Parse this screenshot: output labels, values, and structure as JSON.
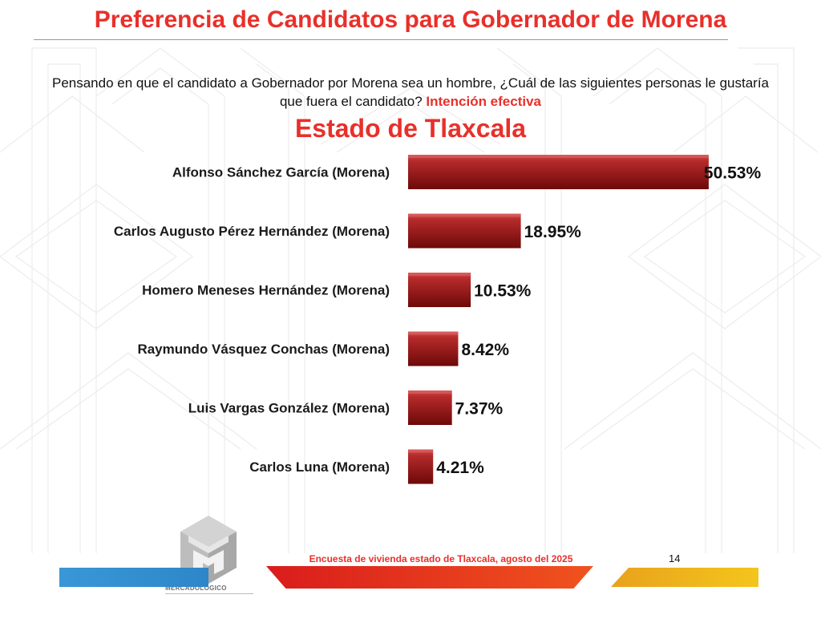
{
  "title": "Preferencia de Candidatos para Gobernador de Morena",
  "question": {
    "text": "Pensando en que el candidato a Gobernador por Morena sea un hombre, ¿Cuál de las siguientes personas le gustaría que fuera el candidato?",
    "highlight": "Intención efectiva"
  },
  "state_title": "Estado de  Tlaxcala",
  "footer": {
    "survey": "Encuesta de vivienda estado de Tlaxcala, agosto del 2025",
    "page_number": "14",
    "logo_text": "MERCADOLÓGICO"
  },
  "colors": {
    "accent_red": "#e8302a",
    "bar_dark": "#7d0d0d",
    "bar_light": "#b52a2a",
    "footer_blue": "#2d86c9",
    "footer_yellow": "#f4c51c"
  },
  "chart_data": {
    "type": "bar",
    "orientation": "horizontal",
    "categories": [
      "Alfonso Sánchez García (Morena)",
      "Carlos Augusto Pérez Hernández (Morena)",
      "Homero Meneses Hernández (Morena)",
      "Raymundo Vásquez Conchas (Morena)",
      "Luis Vargas González (Morena)",
      "Carlos Luna (Morena)"
    ],
    "values": [
      50.53,
      18.95,
      10.53,
      8.42,
      7.37,
      4.21
    ],
    "value_labels": [
      "50.53%",
      "18.95%",
      "10.53%",
      "8.42%",
      "7.37%",
      "4.21%"
    ],
    "unit": "%",
    "grid": false,
    "legend": "none"
  }
}
